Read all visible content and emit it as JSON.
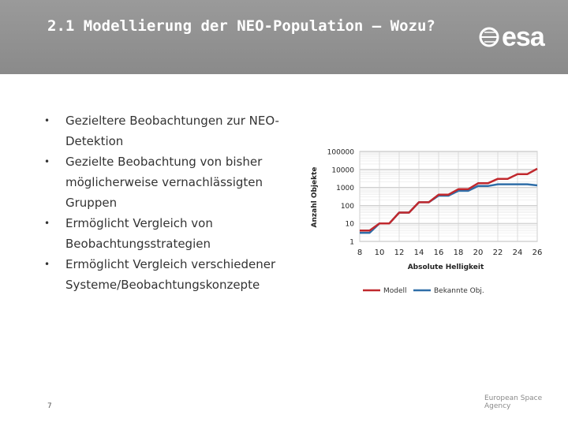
{
  "header": {
    "title": "2.1 Modellierung der NEO-Population – Wozu?",
    "logo_text": "esa"
  },
  "bullets": [
    "Gezieltere Beobachtungen zur NEO-Detektion",
    "Gezielte Beobachtung von bisher möglicherweise vernachlässigten Gruppen",
    "Ermöglicht Vergleich von Beobachtungsstrategien",
    "Ermöglicht Vergleich verschiedener Systeme/Beobachtungskonzepte"
  ],
  "bullet_symbol": "•",
  "footer": {
    "page_number": "7",
    "agency": "European Space Agency"
  },
  "colors": {
    "header_bg": "#8f8f8f",
    "modell": "#c0282d",
    "bekannte": "#2f6ea8"
  },
  "chart_data": {
    "type": "line",
    "title": "",
    "xlabel": "Absolute Helligkeit",
    "ylabel": "Anzahl Objekte",
    "x_ticks": [
      "8",
      "10",
      "12",
      "14",
      "16",
      "18",
      "20",
      "22",
      "24",
      "26"
    ],
    "y_ticks": [
      "1",
      "10",
      "100",
      "1000",
      "10000",
      "100000"
    ],
    "xlim": [
      8,
      26
    ],
    "ylim": [
      1,
      100000
    ],
    "yscale": "log",
    "grid": true,
    "legend": "bottom",
    "x": [
      8,
      9,
      10,
      11,
      12,
      13,
      14,
      15,
      16,
      17,
      18,
      19,
      20,
      21,
      22,
      23,
      24,
      25,
      26
    ],
    "series": [
      {
        "name": "Modell",
        "color": "#c0282d",
        "values": [
          4,
          4,
          10,
          10,
          40,
          40,
          150,
          150,
          400,
          400,
          800,
          800,
          1700,
          1700,
          3000,
          3000,
          5500,
          5500,
          11000
        ]
      },
      {
        "name": "Bekannte Obj.",
        "color": "#2f6ea8",
        "values": [
          3,
          3,
          10,
          10,
          40,
          40,
          150,
          150,
          350,
          350,
          650,
          650,
          1200,
          1200,
          1500,
          1500,
          1500,
          1500,
          1300
        ]
      }
    ]
  }
}
